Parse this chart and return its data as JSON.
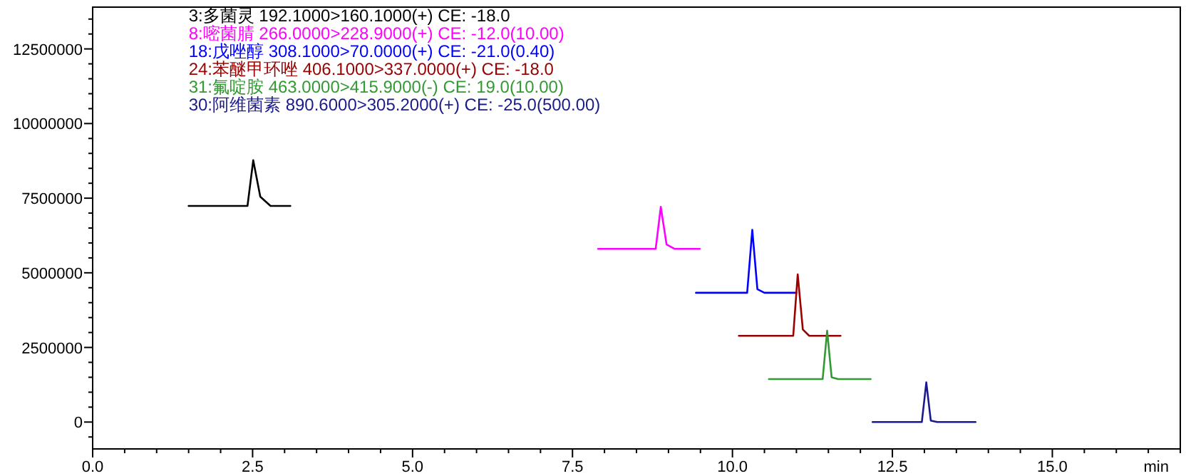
{
  "chart_data": {
    "type": "line",
    "xlabel": "min",
    "legend": "top left",
    "marker": "none",
    "line_style": "solid",
    "grid": false,
    "xlim": [
      0,
      17.0
    ],
    "ylim": [
      -900000,
      13900000
    ],
    "xticks": [
      {
        "value": 0,
        "label": "0.0"
      },
      {
        "value": 0.5,
        "label": null
      },
      {
        "value": 1,
        "label": null
      },
      {
        "value": 1.5,
        "label": null
      },
      {
        "value": 2,
        "label": null
      },
      {
        "value": 2.5,
        "label": "2.5"
      },
      {
        "value": 3,
        "label": null
      },
      {
        "value": 3.5,
        "label": null
      },
      {
        "value": 4,
        "label": null
      },
      {
        "value": 4.5,
        "label": null
      },
      {
        "value": 5,
        "label": "5.0"
      },
      {
        "value": 5.5,
        "label": null
      },
      {
        "value": 6,
        "label": null
      },
      {
        "value": 6.5,
        "label": null
      },
      {
        "value": 7,
        "label": null
      },
      {
        "value": 7.5,
        "label": "7.5"
      },
      {
        "value": 8,
        "label": null
      },
      {
        "value": 8.5,
        "label": null
      },
      {
        "value": 9,
        "label": null
      },
      {
        "value": 9.5,
        "label": null
      },
      {
        "value": 10,
        "label": "10.0"
      },
      {
        "value": 10.5,
        "label": null
      },
      {
        "value": 11,
        "label": null
      },
      {
        "value": 11.5,
        "label": null
      },
      {
        "value": 12,
        "label": null
      },
      {
        "value": 12.5,
        "label": "12.5"
      },
      {
        "value": 13,
        "label": null
      },
      {
        "value": 13.5,
        "label": null
      },
      {
        "value": 14,
        "label": null
      },
      {
        "value": 14.5,
        "label": null
      },
      {
        "value": 15,
        "label": "15.0"
      },
      {
        "value": 15.5,
        "label": null
      },
      {
        "value": 16,
        "label": null
      },
      {
        "value": 16.5,
        "label": null
      },
      {
        "value": 17,
        "label": null
      }
    ],
    "yticks": [
      {
        "value": -500000,
        "label": null
      },
      0,
      {
        "value": 500000,
        "label": null
      },
      {
        "value": 1000000,
        "label": null
      },
      {
        "value": 1500000,
        "label": null
      },
      {
        "value": 2000000,
        "label": null
      },
      2500000,
      {
        "value": 3000000,
        "label": null
      },
      {
        "value": 3500000,
        "label": null
      },
      {
        "value": 4000000,
        "label": null
      },
      {
        "value": 4500000,
        "label": null
      },
      5000000,
      {
        "value": 5500000,
        "label": null
      },
      {
        "value": 6000000,
        "label": null
      },
      {
        "value": 6500000,
        "label": null
      },
      {
        "value": 7000000,
        "label": null
      },
      7500000,
      {
        "value": 8000000,
        "label": null
      },
      {
        "value": 8500000,
        "label": null
      },
      {
        "value": 9000000,
        "label": null
      },
      {
        "value": 9500000,
        "label": null
      },
      10000000,
      {
        "value": 10500000,
        "label": null
      },
      {
        "value": 11000000,
        "label": null
      },
      {
        "value": 11500000,
        "label": null
      },
      {
        "value": 12000000,
        "label": null
      },
      12500000,
      {
        "value": 13000000,
        "label": null
      },
      {
        "value": 13500000,
        "label": null
      }
    ],
    "series": [
      {
        "name": "3:多菌灵 192.1000>160.1000(+) CE: -18.0",
        "color": "#000000",
        "x": [
          1.5,
          2.42,
          2.51,
          2.62,
          2.78,
          3.09
        ],
        "values": [
          7240000,
          7240000,
          8770000,
          7550000,
          7240000,
          7240000
        ]
      },
      {
        "name": "8:嘧菌腈 266.0000>228.9000(+) CE: -12.0(10.00)",
        "color": "#ff00ff",
        "x": [
          7.9,
          8.8,
          8.88,
          8.97,
          9.1,
          9.49
        ],
        "values": [
          5800000,
          5800000,
          7210000,
          5950000,
          5800000,
          5800000
        ]
      },
      {
        "name": "18:戊唑醇 308.1000>70.0000(+) CE: -21.0(0.40)",
        "color": "#0000ff",
        "x": [
          9.43,
          10.23,
          10.31,
          10.39,
          10.5,
          11.0
        ],
        "values": [
          4330000,
          4330000,
          6440000,
          4450000,
          4330000,
          4330000
        ]
      },
      {
        "name": "24:苯醚甲环唑 406.1000>337.0000(+) CE: -18.0",
        "color": "#990000",
        "x": [
          10.1,
          10.95,
          11.02,
          11.1,
          11.2,
          11.69
        ],
        "values": [
          2890000,
          2890000,
          4950000,
          3100000,
          2890000,
          2890000
        ]
      },
      {
        "name": "31:氟啶胺 463.0000>415.9000(-) CE: 19.0(10.00)",
        "color": "#339933",
        "x": [
          10.57,
          11.41,
          11.48,
          11.55,
          11.65,
          12.16
        ],
        "values": [
          1440000,
          1440000,
          3060000,
          1500000,
          1440000,
          1440000
        ]
      },
      {
        "name": "30:阿维菌素 890.6000>305.2000(+) CE: -25.0(500.00)",
        "color": "#1a1a8c",
        "x": [
          12.19,
          12.96,
          13.03,
          13.1,
          13.2,
          13.8
        ],
        "values": [
          0,
          0,
          1330000,
          50000,
          0,
          0
        ]
      }
    ]
  }
}
